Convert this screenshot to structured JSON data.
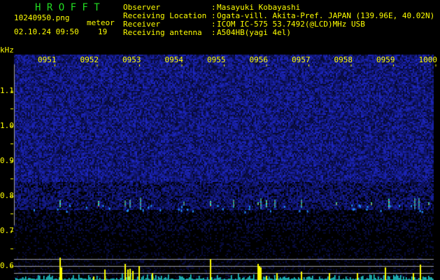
{
  "header": {
    "title": "H R O F F T",
    "filename": "10240950.png",
    "datetime": "02.10.24 09:50",
    "meteor_label": "meteor",
    "meteor_count": "19"
  },
  "info": [
    {
      "label": "Observer",
      "value": "Masayuki Kobayashi"
    },
    {
      "label": "Receiving Location",
      "value": "Ogata-vill. Akita-Pref. JAPAN (139.96E, 40.02N)"
    },
    {
      "label": "Receiver",
      "value": "ICOM IC-575 53.7492(@LCD)MHz USB"
    },
    {
      "label": "Receiving antenna",
      "value": "A504HB(yagi 4el)"
    }
  ],
  "spectrogram": {
    "y_unit": "kHz",
    "time_labels": [
      "0951",
      "0952",
      "0953",
      "0954",
      "0955",
      "0956",
      "0957",
      "0958",
      "0959",
      "1000"
    ],
    "freq_labels": [
      "1.1",
      "1.0",
      "0.9",
      "0.8",
      "0.7",
      "0.6"
    ],
    "colors": {
      "noise": "#1a2aa0",
      "meteor_hot": "#ff0040",
      "bar_normal": "#22e0e0",
      "bar_meteor": "#ffff00",
      "guide": "#a0a0a0"
    }
  }
}
